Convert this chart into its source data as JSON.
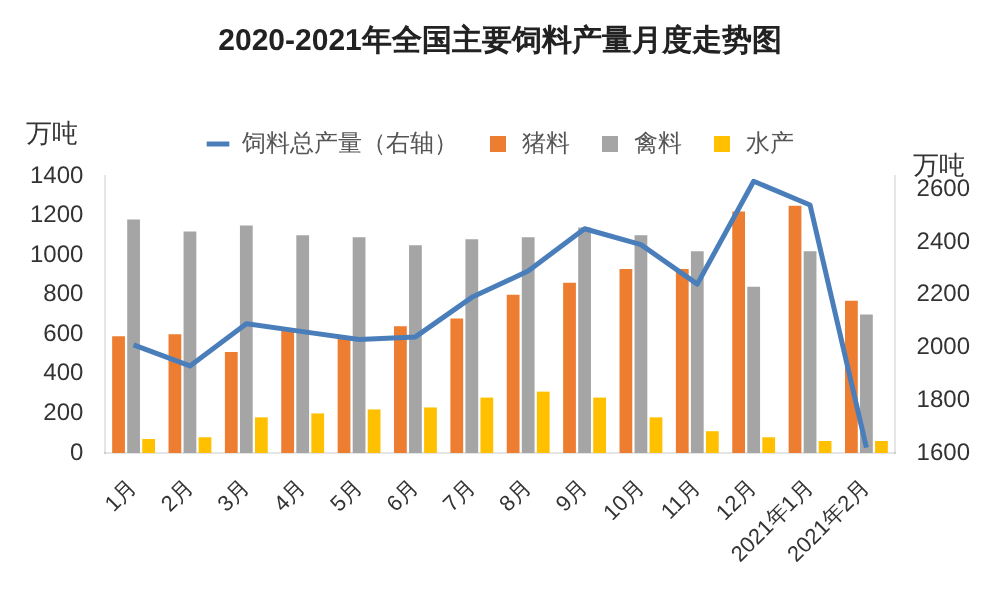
{
  "chart_data": {
    "type": "bar",
    "title": "2020-2021年全国主要饲料产量月度走势图",
    "ylabel": "万吨",
    "y2label": "万吨",
    "categories": [
      "1月",
      "2月",
      "3月",
      "4月",
      "5月",
      "6月",
      "7月",
      "8月",
      "9月",
      "10月",
      "11月",
      "12月",
      "2021年1月",
      "2021年2月"
    ],
    "series": [
      {
        "name": "猪料",
        "color": "#ed7d31",
        "values": [
          590,
          600,
          510,
          620,
          580,
          640,
          680,
          800,
          860,
          930,
          930,
          1220,
          1250,
          770
        ]
      },
      {
        "name": "禽料",
        "color": "#a5a5a5",
        "values": [
          1180,
          1120,
          1150,
          1100,
          1090,
          1050,
          1080,
          1090,
          1140,
          1100,
          1020,
          840,
          1020,
          700
        ]
      },
      {
        "name": "水产",
        "color": "#ffc000",
        "values": [
          70,
          80,
          180,
          200,
          220,
          230,
          280,
          310,
          280,
          180,
          110,
          80,
          60,
          60
        ]
      },
      {
        "name": "饲料总产量（右轴）",
        "color": "#4a7ebb",
        "type": "line",
        "axis": "y2",
        "values": [
          2010,
          1930,
          2090,
          2060,
          2030,
          2040,
          2190,
          2290,
          2450,
          2390,
          2240,
          2630,
          2540,
          1620
        ]
      }
    ],
    "ylim": [
      0,
      1400
    ],
    "yticks": [
      0,
      200,
      400,
      600,
      800,
      1000,
      1200,
      1400
    ],
    "y2lim": [
      1600,
      2650
    ],
    "y2ticks": [
      1600,
      1800,
      2000,
      2200,
      2400,
      2600
    ],
    "grid": false,
    "legend": "top",
    "marker": "none"
  }
}
